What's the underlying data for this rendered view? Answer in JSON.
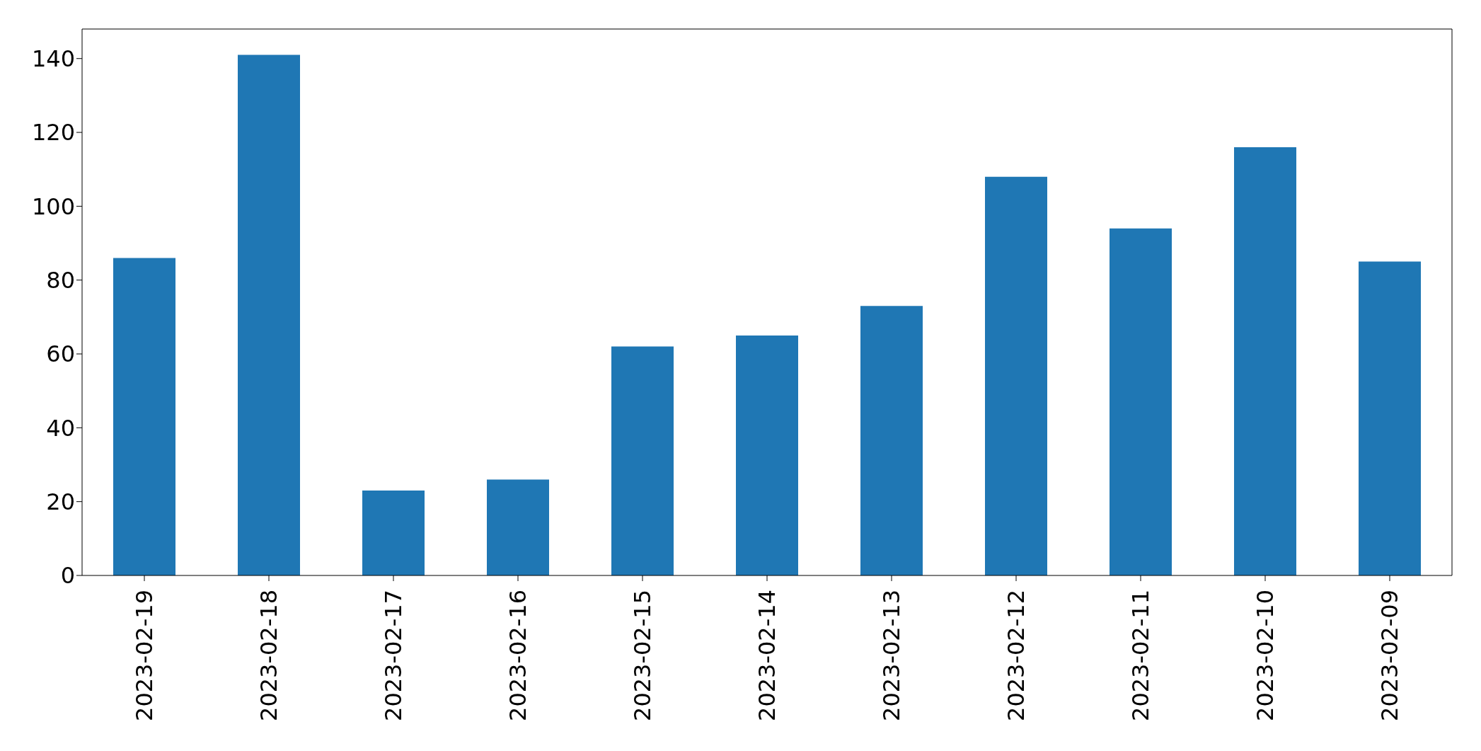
{
  "chart_data": {
    "type": "bar",
    "categories": [
      "2023-02-19",
      "2023-02-18",
      "2023-02-17",
      "2023-02-16",
      "2023-02-15",
      "2023-02-14",
      "2023-02-13",
      "2023-02-12",
      "2023-02-11",
      "2023-02-10",
      "2023-02-09"
    ],
    "values": [
      86,
      141,
      23,
      26,
      62,
      65,
      73,
      108,
      94,
      116,
      85
    ],
    "color": "#1f77b4",
    "ylim": [
      0,
      148
    ],
    "yticks": [
      0,
      20,
      40,
      60,
      80,
      100,
      120,
      140
    ]
  }
}
